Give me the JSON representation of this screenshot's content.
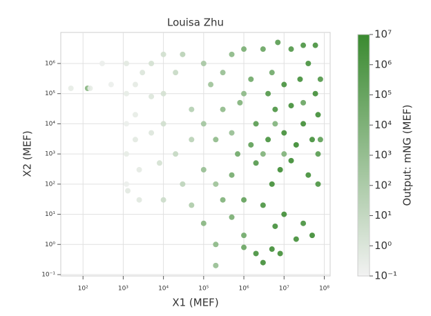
{
  "chart_data": {
    "type": "scatter",
    "title": "Louisa Zhu",
    "x_label": "X1 (MEF)",
    "y_label": "X2 (MEF)",
    "colorbar_label": "Output: mNG (MEF)",
    "xscale": "log",
    "yscale": "log",
    "grid": true,
    "xlim": [
      28,
      140000000.0
    ],
    "ylim": [
      0.09,
      10700000.0
    ],
    "xticks": [
      {
        "value": 100,
        "label": "10²"
      },
      {
        "value": 1000,
        "label": "10³"
      },
      {
        "value": 10000,
        "label": "10⁴"
      },
      {
        "value": 100000,
        "label": "10⁵"
      },
      {
        "value": 1000000,
        "label": "10⁶"
      },
      {
        "value": 10000000,
        "label": "10⁷"
      },
      {
        "value": 100000000,
        "label": "10⁸"
      }
    ],
    "yticks": [
      {
        "value": 0.1,
        "label": "10⁻¹"
      },
      {
        "value": 1,
        "label": "10⁰"
      },
      {
        "value": 10,
        "label": "10¹"
      },
      {
        "value": 100,
        "label": "10²"
      },
      {
        "value": 1000,
        "label": "10³"
      },
      {
        "value": 10000,
        "label": "10⁴"
      },
      {
        "value": 100000,
        "label": "10⁵"
      },
      {
        "value": 1000000,
        "label": "10⁶"
      }
    ],
    "clim": [
      0.1,
      10000000.0
    ],
    "cticks": [
      {
        "value": 0.1,
        "label": "10⁻¹"
      },
      {
        "value": 1,
        "label": "10⁰"
      },
      {
        "value": 10,
        "label": "10¹"
      },
      {
        "value": 100,
        "label": "10²"
      },
      {
        "value": 1000,
        "label": "10³"
      },
      {
        "value": 10000,
        "label": "10⁴"
      },
      {
        "value": 100000,
        "label": "10⁵"
      },
      {
        "value": 1000000,
        "label": "10⁶"
      },
      {
        "value": 10000000,
        "label": "10⁷"
      }
    ],
    "cmap": [
      "#f2f2f2",
      "#3a8a30"
    ],
    "x": [
      1200,
      1200,
      1200,
      1200,
      1200,
      1300,
      2000,
      2000,
      2000,
      2500,
      2500,
      3000,
      5000,
      5000,
      5000,
      8000,
      10000,
      10000,
      10000,
      10000,
      20000,
      20000,
      30000,
      30000,
      50000,
      50000,
      50000,
      130,
      50,
      300,
      500,
      150,
      100000.0,
      100000.0,
      100000.0,
      100000.0,
      150000.0,
      200000.0,
      200000.0,
      200000.0,
      300000.0,
      300000.0,
      300000.0,
      500000.0,
      500000.0,
      500000.0,
      700000.0,
      800000.0,
      1000000.0,
      1000000.0,
      1000000.0,
      1000000.0,
      1500000.0,
      1500000.0,
      2000000.0,
      2000000.0,
      2000000.0,
      3000000.0,
      3000000.0,
      3000000.0,
      4000000.0,
      4000000.0,
      5000000.0,
      5000000.0,
      6000000.0,
      6000000.0,
      7000000.0,
      8000000.0,
      8000000.0,
      10000000.0,
      10000000.0,
      10000000.0,
      15000000.0,
      15000000.0,
      15000000.0,
      20000000.0,
      20000000.0,
      25000000.0,
      30000000.0,
      30000000.0,
      30000000.0,
      40000000.0,
      40000000.0,
      50000000.0,
      50000000.0,
      60000000.0,
      60000000.0,
      70000000.0,
      70000000.0,
      70000000.0,
      80000000.0,
      80000000.0,
      3000000.0,
      500000.0,
      1000000.0,
      200000.0,
      5000000.0,
      30000000.0,
      10000000.0,
      6000000.0
    ],
    "y": [
      1000000.0,
      100000.0,
      10000.0,
      1000,
      100,
      60,
      200000.0,
      20000.0,
      3000,
      300,
      30,
      500000.0,
      1000000.0,
      80000.0,
      5000,
      500,
      2000000.0,
      100000.0,
      10000.0,
      30,
      1000,
      500000.0,
      100,
      2000000.0,
      30000.0,
      3000,
      20,
      150000.0,
      150000.0,
      1000000.0,
      200000.0,
      150000.0,
      1000000.0,
      10000.0,
      300,
      5,
      200000.0,
      3000,
      1,
      0.2,
      500000.0,
      30,
      30000.0,
      2000000.0,
      200,
      8,
      1000,
      50000.0,
      3000000.0,
      2,
      0.8,
      30,
      300000.0,
      2000,
      10000.0,
      500,
      0.5,
      3000000.0,
      0.25,
      20,
      100000.0,
      3000,
      100,
      0.7,
      4,
      30000.0,
      5000000.0,
      300,
      0.5,
      200000.0,
      5000,
      10,
      3000000.0,
      40000.0,
      600,
      1.5,
      2000,
      300000.0,
      5,
      4000000.0,
      10000.0,
      200,
      1000000.0,
      3000,
      2,
      100000.0,
      4000000.0,
      100,
      20000.0,
      1000,
      3000,
      300000.0,
      1000,
      5000,
      100000.0,
      100,
      500000.0,
      50000.0,
      1000,
      10000.0
    ],
    "c": [
      0.5,
      0.3,
      0.2,
      0.3,
      0.2,
      0.5,
      0.4,
      0.3,
      0.5,
      0.4,
      0.6,
      1,
      2,
      1,
      0.8,
      2,
      3,
      2,
      3,
      5,
      10,
      8,
      20,
      30,
      50,
      30,
      100,
      5000,
      0.3,
      0.2,
      0.2,
      0.3,
      200,
      300,
      1000,
      5000,
      500,
      2000,
      3000,
      1000,
      1000,
      10000.0,
      2000,
      3000,
      30000.0,
      20000.0,
      50000.0,
      10000.0,
      20000.0,
      50000.0,
      100000.0,
      200000.0,
      50000.0,
      300000.0,
      500000.0,
      800000.0,
      3000000.0,
      100000.0,
      5000000.0,
      2000000.0,
      1000000.0,
      3000000.0,
      5000000.0,
      6000000.0,
      4000000.0,
      2000000.0,
      500000.0,
      8000000.0,
      5000000.0,
      3000000.0,
      5000000.0,
      6000000.0,
      1000000.0,
      5000000.0,
      8000000.0,
      5000000.0,
      10000000.0,
      4000000.0,
      3000000.0,
      2000000.0,
      6000000.0,
      5000000.0,
      3000000.0,
      4000000.0,
      8000000.0,
      5000000.0,
      3000000.0,
      2000000.0,
      6000000.0,
      500000.0,
      300000.0,
      1000000.0,
      10000.0,
      1000,
      3000,
      500,
      50000.0,
      100000.0,
      10000.0,
      8000
    ]
  }
}
